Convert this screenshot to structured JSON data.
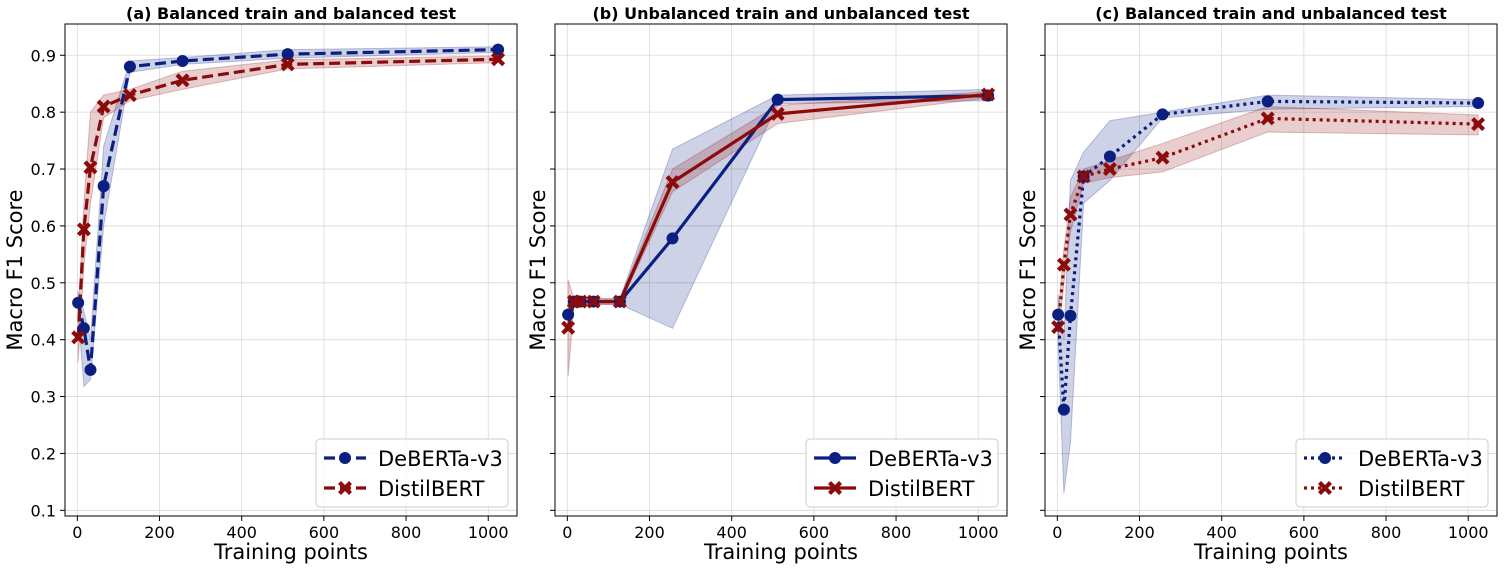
{
  "chart_data": [
    {
      "type": "line",
      "title": "(a) Balanced train and balanced test",
      "xlabel": "Training points",
      "ylabel": "Macro F1 Score",
      "xlim": [
        -30,
        1070
      ],
      "ylim": [
        0.09,
        0.955
      ],
      "xticks": [
        0,
        200,
        400,
        600,
        800,
        1000
      ],
      "yticks": [
        0.1,
        0.2,
        0.3,
        0.4,
        0.5,
        0.6,
        0.7,
        0.8,
        0.9
      ],
      "grid": true,
      "legend_position": "bottom-right",
      "line_style": "dashed",
      "series": [
        {
          "name": "DeBERTa-v3",
          "color": "#0a1f80",
          "marker": "circle",
          "x": [
            2,
            16,
            32,
            64,
            128,
            256,
            512,
            1024
          ],
          "y": [
            0.465,
            0.42,
            0.347,
            0.67,
            0.88,
            0.89,
            0.902,
            0.91
          ],
          "lower": [
            0.445,
            0.318,
            0.33,
            0.6,
            0.87,
            0.884,
            0.895,
            0.905
          ],
          "upper": [
            0.485,
            0.45,
            0.4,
            0.74,
            0.89,
            0.896,
            0.91,
            0.915
          ]
        },
        {
          "name": "DistilBERT",
          "color": "#8b0a0a",
          "marker": "x",
          "x": [
            2,
            16,
            32,
            64,
            128,
            256,
            512,
            1024
          ],
          "y": [
            0.404,
            0.594,
            0.703,
            0.81,
            0.83,
            0.856,
            0.884,
            0.893
          ],
          "lower": [
            0.36,
            0.53,
            0.64,
            0.79,
            0.82,
            0.84,
            0.876,
            0.887
          ],
          "upper": [
            0.44,
            0.64,
            0.8,
            0.83,
            0.84,
            0.872,
            0.892,
            0.899
          ]
        }
      ]
    },
    {
      "type": "line",
      "title": "(b) Unbalanced train and unbalanced test",
      "xlabel": "Training points",
      "ylabel": "Macro F1 Score",
      "xlim": [
        -30,
        1070
      ],
      "ylim": [
        0.09,
        0.955
      ],
      "xticks": [
        0,
        200,
        400,
        600,
        800,
        1000
      ],
      "yticks": [
        0.1,
        0.2,
        0.3,
        0.4,
        0.5,
        0.6,
        0.7,
        0.8,
        0.9
      ],
      "grid": true,
      "legend_position": "bottom-right",
      "line_style": "solid",
      "series": [
        {
          "name": "DeBERTa-v3",
          "color": "#0a1f80",
          "marker": "circle",
          "x": [
            2,
            16,
            32,
            64,
            128,
            256,
            512,
            1024
          ],
          "y": [
            0.444,
            0.467,
            0.467,
            0.467,
            0.467,
            0.578,
            0.822,
            0.829
          ],
          "lower": [
            0.43,
            0.462,
            0.462,
            0.462,
            0.462,
            0.42,
            0.815,
            0.82
          ],
          "upper": [
            0.455,
            0.472,
            0.472,
            0.472,
            0.472,
            0.735,
            0.83,
            0.84
          ]
        },
        {
          "name": "DistilBERT",
          "color": "#8b0a0a",
          "marker": "x",
          "x": [
            2,
            16,
            32,
            64,
            128,
            256,
            512,
            1024
          ],
          "y": [
            0.421,
            0.467,
            0.467,
            0.467,
            0.467,
            0.677,
            0.797,
            0.831
          ],
          "lower": [
            0.335,
            0.462,
            0.462,
            0.462,
            0.462,
            0.66,
            0.78,
            0.825
          ],
          "upper": [
            0.505,
            0.472,
            0.472,
            0.472,
            0.472,
            0.7,
            0.812,
            0.836
          ]
        }
      ]
    },
    {
      "type": "line",
      "title": "(c) Balanced train and unbalanced test",
      "xlabel": "Training points",
      "ylabel": "Macro F1 Score",
      "xlim": [
        -30,
        1070
      ],
      "ylim": [
        0.09,
        0.955
      ],
      "xticks": [
        0,
        200,
        400,
        600,
        800,
        1000
      ],
      "yticks": [
        0.1,
        0.2,
        0.3,
        0.4,
        0.5,
        0.6,
        0.7,
        0.8,
        0.9
      ],
      "grid": true,
      "legend_position": "bottom-right",
      "line_style": "dotted",
      "series": [
        {
          "name": "DeBERTa-v3",
          "color": "#0a1f80",
          "marker": "circle",
          "x": [
            2,
            16,
            32,
            64,
            128,
            256,
            512,
            1024
          ],
          "y": [
            0.444,
            0.277,
            0.442,
            0.687,
            0.722,
            0.796,
            0.819,
            0.816
          ],
          "lower": [
            0.39,
            0.13,
            0.22,
            0.64,
            0.68,
            0.79,
            0.805,
            0.81
          ],
          "upper": [
            0.48,
            0.4,
            0.68,
            0.73,
            0.785,
            0.8,
            0.83,
            0.822
          ]
        },
        {
          "name": "DistilBERT",
          "color": "#8b0a0a",
          "marker": "x",
          "x": [
            2,
            16,
            32,
            64,
            128,
            256,
            512,
            1024
          ],
          "y": [
            0.422,
            0.532,
            0.62,
            0.687,
            0.7,
            0.72,
            0.789,
            0.779
          ],
          "lower": [
            0.4,
            0.5,
            0.59,
            0.675,
            0.685,
            0.695,
            0.765,
            0.76
          ],
          "upper": [
            0.44,
            0.56,
            0.65,
            0.7,
            0.715,
            0.745,
            0.81,
            0.795
          ]
        }
      ]
    }
  ]
}
